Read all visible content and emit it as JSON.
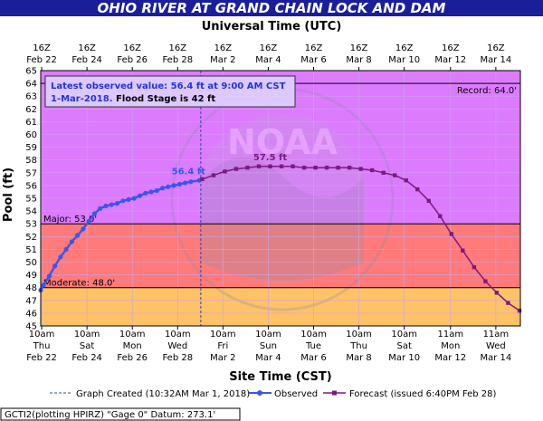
{
  "colors": {
    "title_bg": "#1a1f99",
    "band_above_record": "#dd7bff",
    "band_major": "#dd7bff",
    "band_moderate": "#ff7a7a",
    "band_minor": "#ffc266",
    "observed": "#3a55ee",
    "forecast": "#7a1b82",
    "watermark": "#9999aa"
  },
  "chart_data": {
    "type": "line",
    "title": "OHIO RIVER AT GRAND CHAIN LOCK AND DAM",
    "top_axis_label": "Universal Time (UTC)",
    "xlabel": "Site Time (CST)",
    "ylabel": "Pool (ft)",
    "x_range": [
      "2018-02-22T09:00",
      "2018-03-15T13:00"
    ],
    "ylim": [
      45,
      65
    ],
    "y_ticks": [
      45,
      46,
      47,
      48,
      49,
      50,
      51,
      52,
      53,
      54,
      55,
      56,
      57,
      58,
      59,
      60,
      61,
      62,
      63,
      64,
      65
    ],
    "x_ticks_bottom": [
      {
        "x": "2018-02-22T10:00",
        "l1": "10am",
        "l2": "Thu",
        "l3": "Feb 22"
      },
      {
        "x": "2018-02-24T10:00",
        "l1": "10am",
        "l2": "Sat",
        "l3": "Feb 24"
      },
      {
        "x": "2018-02-26T10:00",
        "l1": "10am",
        "l2": "Mon",
        "l3": "Feb 26"
      },
      {
        "x": "2018-02-28T10:00",
        "l1": "10am",
        "l2": "Wed",
        "l3": "Feb 28"
      },
      {
        "x": "2018-03-02T10:00",
        "l1": "10am",
        "l2": "Fri",
        "l3": "Mar 2"
      },
      {
        "x": "2018-03-04T10:00",
        "l1": "10am",
        "l2": "Sun",
        "l3": "Mar 4"
      },
      {
        "x": "2018-03-06T10:00",
        "l1": "10am",
        "l2": "Tue",
        "l3": "Mar 6"
      },
      {
        "x": "2018-03-08T10:00",
        "l1": "10am",
        "l2": "Thu",
        "l3": "Mar 8"
      },
      {
        "x": "2018-03-10T10:00",
        "l1": "10am",
        "l2": "Sat",
        "l3": "Mar 10"
      },
      {
        "x": "2018-03-12T11:00",
        "l1": "11am",
        "l2": "Mon",
        "l3": "Mar 12"
      },
      {
        "x": "2018-03-14T11:00",
        "l1": "11am",
        "l2": "Wed",
        "l3": "Mar 14"
      }
    ],
    "x_ticks_top": [
      {
        "x": "2018-02-22T10:00",
        "l1": "16Z",
        "l2": "Feb 22"
      },
      {
        "x": "2018-02-24T10:00",
        "l1": "16Z",
        "l2": "Feb 24"
      },
      {
        "x": "2018-02-26T10:00",
        "l1": "16Z",
        "l2": "Feb 26"
      },
      {
        "x": "2018-02-28T10:00",
        "l1": "16Z",
        "l2": "Feb 28"
      },
      {
        "x": "2018-03-02T10:00",
        "l1": "16Z",
        "l2": "Mar 2"
      },
      {
        "x": "2018-03-04T10:00",
        "l1": "16Z",
        "l2": "Mar 4"
      },
      {
        "x": "2018-03-06T10:00",
        "l1": "16Z",
        "l2": "Mar 6"
      },
      {
        "x": "2018-03-08T10:00",
        "l1": "16Z",
        "l2": "Mar 8"
      },
      {
        "x": "2018-03-10T10:00",
        "l1": "16Z",
        "l2": "Mar 10"
      },
      {
        "x": "2018-03-12T11:00",
        "l1": "16Z",
        "l2": "Mar 12"
      },
      {
        "x": "2018-03-14T11:00",
        "l1": "16Z",
        "l2": "Mar 14"
      }
    ],
    "thresholds": [
      {
        "name": "Record",
        "value": 64.0,
        "label": "Record: 64.0'"
      },
      {
        "name": "Major",
        "value": 53.0,
        "label": "Major: 53.0'"
      },
      {
        "name": "Moderate",
        "value": 48.0,
        "label": "Moderate: 48.0'"
      }
    ],
    "graph_created": "2018-03-01T10:32",
    "series": [
      {
        "name": "Observed",
        "x": [
          "2018-02-22T09:00",
          "2018-02-22T12:00",
          "2018-02-22T18:00",
          "2018-02-23T00:00",
          "2018-02-23T06:00",
          "2018-02-23T12:00",
          "2018-02-23T18:00",
          "2018-02-24T00:00",
          "2018-02-24T06:00",
          "2018-02-24T12:00",
          "2018-02-24T18:00",
          "2018-02-25T00:00",
          "2018-02-25T06:00",
          "2018-02-25T12:00",
          "2018-02-25T18:00",
          "2018-02-26T00:00",
          "2018-02-26T06:00",
          "2018-02-26T12:00",
          "2018-02-26T18:00",
          "2018-02-27T00:00",
          "2018-02-27T06:00",
          "2018-02-27T12:00",
          "2018-02-27T18:00",
          "2018-02-28T00:00",
          "2018-02-28T06:00",
          "2018-02-28T12:00",
          "2018-02-28T18:00",
          "2018-03-01T00:00",
          "2018-03-01T09:00"
        ],
        "y": [
          47.8,
          48.2,
          48.9,
          49.7,
          50.4,
          51.0,
          51.6,
          52.1,
          52.6,
          53.2,
          53.8,
          54.2,
          54.4,
          54.5,
          54.6,
          54.8,
          54.9,
          55.0,
          55.2,
          55.4,
          55.5,
          55.6,
          55.8,
          55.9,
          56.0,
          56.1,
          56.2,
          56.3,
          56.4
        ]
      },
      {
        "name": "Forecast",
        "x": [
          "2018-03-01T12:00",
          "2018-03-02T00:00",
          "2018-03-02T12:00",
          "2018-03-03T00:00",
          "2018-03-03T12:00",
          "2018-03-04T00:00",
          "2018-03-04T12:00",
          "2018-03-05T00:00",
          "2018-03-05T12:00",
          "2018-03-06T00:00",
          "2018-03-06T12:00",
          "2018-03-07T00:00",
          "2018-03-07T12:00",
          "2018-03-08T00:00",
          "2018-03-08T12:00",
          "2018-03-09T00:00",
          "2018-03-09T12:00",
          "2018-03-10T00:00",
          "2018-03-10T12:00",
          "2018-03-11T00:00",
          "2018-03-11T12:00",
          "2018-03-12T00:00",
          "2018-03-12T12:00",
          "2018-03-13T00:00",
          "2018-03-13T12:00",
          "2018-03-14T00:00",
          "2018-03-14T12:00",
          "2018-03-15T00:00",
          "2018-03-15T12:00"
        ],
        "y": [
          56.5,
          56.8,
          57.1,
          57.3,
          57.4,
          57.5,
          57.5,
          57.5,
          57.5,
          57.4,
          57.4,
          57.4,
          57.4,
          57.4,
          57.3,
          57.2,
          57.0,
          56.8,
          56.4,
          55.7,
          54.8,
          53.6,
          52.2,
          50.9,
          49.6,
          48.5,
          47.6,
          46.8,
          46.2
        ]
      }
    ],
    "annotations": [
      {
        "text": "56.4 ft",
        "x": "2018-03-01T09:00",
        "y": 56.4,
        "series": "Observed"
      },
      {
        "text": "57.5 ft",
        "x": "2018-03-04T12:00",
        "y": 57.5,
        "series": "Forecast"
      }
    ],
    "info_box": {
      "line1": "Latest observed value: 56.4 ft at 9:00 AM CST",
      "line2a": "1-Mar-2018.",
      "line2b": "Flood Stage is 42 ft"
    },
    "legend": {
      "created": "Graph Created (10:32AM Mar 1, 2018)",
      "observed": "Observed",
      "forecast": "Forecast (issued 6:40PM Feb 28)"
    }
  },
  "footer": "GCTI2(plotting HPIRZ) \"Gage 0\" Datum: 273.1'"
}
